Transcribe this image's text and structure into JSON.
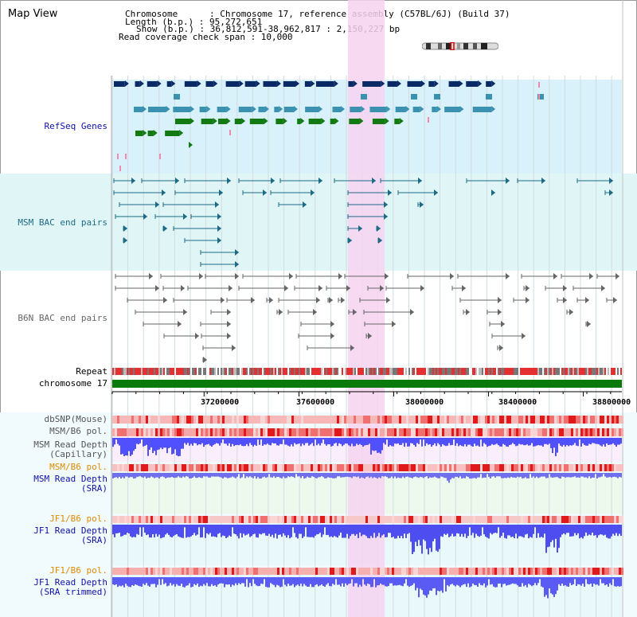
{
  "header": {
    "title": "Map View",
    "info_lines": [
      "Chromosome      : Chromosome 17, reference assembly (C57BL/6J) (Build 37)",
      "Length (b.p.) : 95,272,651",
      "Show (b.p.) : 36,812,591-38,962,817 : 2,150,227 bp",
      "Read coverage check span : 10,000"
    ]
  },
  "tracks": {
    "refseq": "RefSeq Genes",
    "msm_bac": "MSM BAC end pairs",
    "b6n_bac": "B6N BAC end pairs",
    "repeat": "Repeat",
    "chromosome": "chromosome 17",
    "dbsnp": "dbSNP(Mouse)",
    "msm_b6_pol_1": "MSM/B6 pol.",
    "msm_depth_cap": "MSM Read Depth\n(Capillary)",
    "msm_b6_pol_2": "MSM/B6 pol.",
    "msm_depth_sra": "MSM Read Depth\n(SRA)",
    "jf1_b6_pol_1": "JF1/B6 pol.",
    "jf1_depth_sra": "JF1 Read Depth\n(SRA)",
    "jf1_b6_pol_2": "JF1/B6 pol.",
    "jf1_depth_trim": "JF1 Read Depth\n(SRA trimmed)"
  },
  "axis": {
    "ticks": [
      "37200000",
      "37600000",
      "38000000",
      "38400000",
      "38800000"
    ]
  },
  "colors": {
    "highlight": "#f6d3f0",
    "refseq_bg": "#d9f1fa",
    "navy": "#0a2a66",
    "teal": "#1d6a86",
    "green": "#137a13",
    "gray": "#666666",
    "repeat_red": "#e43030",
    "chrom_green": "#0a7a0a",
    "depth_blue": "#3333ff",
    "label_blue": "#1010aa",
    "label_orange": "#e08a00"
  }
}
